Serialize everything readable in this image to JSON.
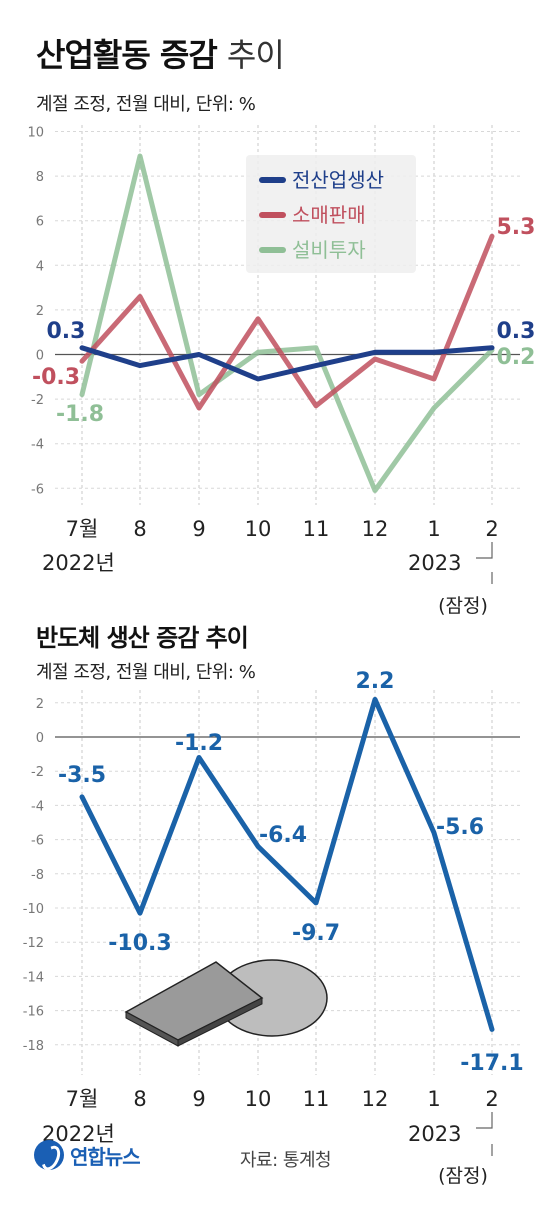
{
  "header": {
    "title_bold": "산업활동 증감",
    "title_light": "추이",
    "subtitle": "계절 조정, 전월 대비, 단위: %"
  },
  "chart2_header": {
    "title": "반도체 생산 증감 추이",
    "subtitle": "계절 조정, 전월 대비, 단위: %"
  },
  "footer": {
    "logo_text": "연합뉴스",
    "source": "자료: 통계청"
  },
  "chart_data": [
    {
      "type": "line",
      "title": "산업활동 증감 추이",
      "categories": [
        "7월",
        "8",
        "9",
        "10",
        "11",
        "12",
        "1",
        "2"
      ],
      "year_labels": [
        "2022년",
        "2023"
      ],
      "provisional_label": "(잠정)",
      "ylim": [
        -7,
        10
      ],
      "yticks": [
        10,
        8,
        6,
        4,
        2,
        0,
        -2,
        -4,
        -6
      ],
      "grid": true,
      "legend_position": "top-right",
      "series": [
        {
          "name": "전산업생산",
          "color": "#1f3f8a",
          "values": [
            0.3,
            -0.5,
            0.0,
            -1.1,
            -0.5,
            0.1,
            0.1,
            0.3
          ]
        },
        {
          "name": "소매판매",
          "color": "#c0505e",
          "values": [
            -0.3,
            2.6,
            -2.4,
            1.6,
            -2.3,
            -0.2,
            -1.1,
            5.3
          ]
        },
        {
          "name": "설비투자",
          "color": "#8fbf96",
          "values": [
            -1.8,
            8.9,
            -1.8,
            0.1,
            0.3,
            -6.1,
            -2.4,
            0.2
          ]
        }
      ],
      "data_labels": [
        {
          "series": 0,
          "index": 0,
          "text": "0.3"
        },
        {
          "series": 1,
          "index": 0,
          "text": "-0.3"
        },
        {
          "series": 2,
          "index": 0,
          "text": "-1.8"
        },
        {
          "series": 1,
          "index": 7,
          "text": "5.3"
        },
        {
          "series": 0,
          "index": 7,
          "text": "0.3"
        },
        {
          "series": 2,
          "index": 7,
          "text": "0.2"
        }
      ]
    },
    {
      "type": "line",
      "title": "반도체 생산 증감 추이",
      "categories": [
        "7월",
        "8",
        "9",
        "10",
        "11",
        "12",
        "1",
        "2"
      ],
      "year_labels": [
        "2022년",
        "2023"
      ],
      "provisional_label": "(잠정)",
      "ylim": [
        -19,
        3
      ],
      "yticks": [
        2,
        0,
        -2,
        -4,
        -6,
        -8,
        -10,
        -12,
        -14,
        -16,
        -18
      ],
      "grid": true,
      "series": [
        {
          "color": "#1a62a8",
          "values": [
            -3.5,
            -10.3,
            -1.2,
            -6.4,
            -9.7,
            2.2,
            -5.6,
            -17.1
          ]
        }
      ],
      "data_labels": [
        "-3.5",
        "-10.3",
        "-1.2",
        "-6.4",
        "-9.7",
        "2.2",
        "-5.6",
        "-17.1"
      ]
    }
  ]
}
